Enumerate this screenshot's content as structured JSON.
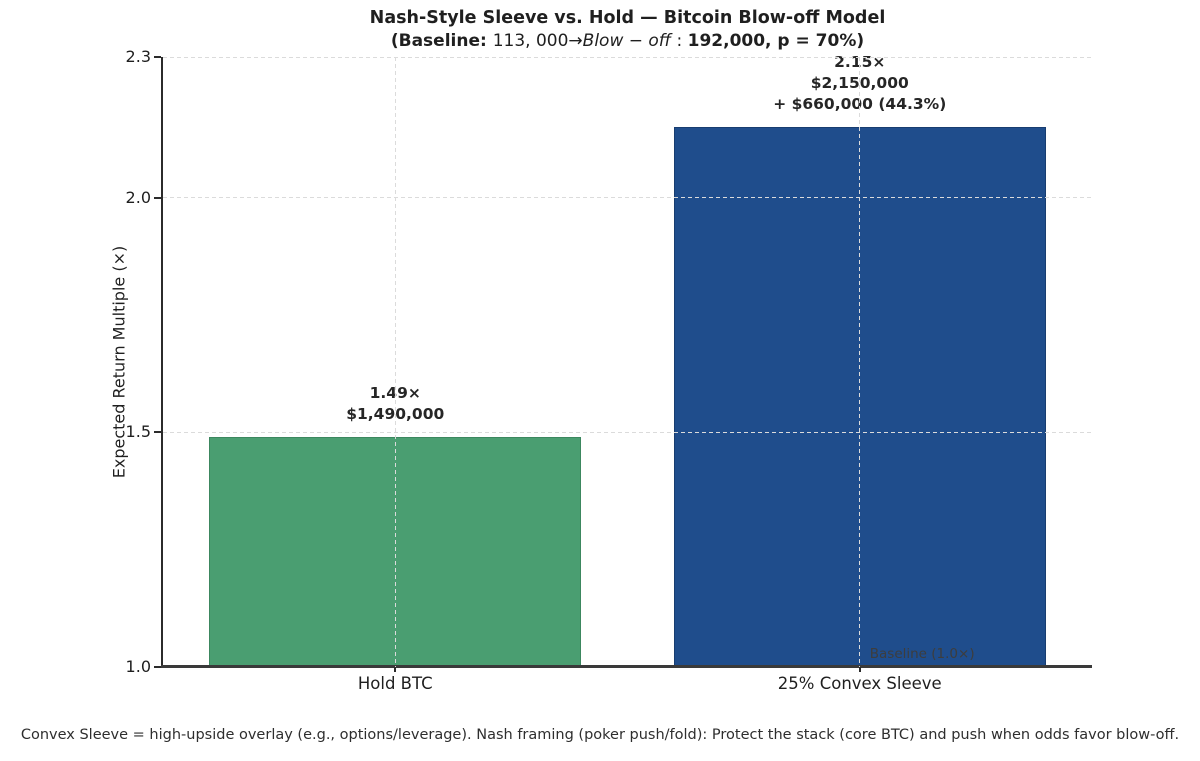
{
  "chart": {
    "title": "Nash-Style Sleeve vs. Hold — Bitcoin Blow-off Model",
    "subtitle_parts": [
      {
        "text": "(Baseline: ",
        "style": "bold"
      },
      {
        "text": "113, 000",
        "style": "regular"
      },
      {
        "text": "→",
        "style": "regular"
      },
      {
        "text": "Blow − off",
        "style": "italic"
      },
      {
        "text": " : ",
        "style": "regular"
      },
      {
        "text": "192,000, p = 70%)",
        "style": "bold"
      }
    ],
    "ylabel": "Expected Return Multiple (×)",
    "baseline_label": "Baseline (1.0×)",
    "footnote": "Convex Sleeve = high-upside overlay (e.g., options/leverage). Nash framing (poker push/fold): Protect the stack (core BTC) and push when odds favor blow-off."
  },
  "chart_data": {
    "type": "bar",
    "title": "Nash-Style Sleeve vs. Hold — Bitcoin Blow-off Model",
    "subtitle": "(Baseline: 113, 000→Blow − off : 192,000, p = 70%)",
    "categories": [
      "Hold BTC",
      "25% Convex Sleeve"
    ],
    "values": [
      1.49,
      2.15
    ],
    "bar_colors": [
      "#4a9e71",
      "#1f4d8c"
    ],
    "bar_edge_colors": [
      "#3c875f",
      "#183d70"
    ],
    "annotations": [
      {
        "lines": [
          "1.49×",
          "$1,490,000"
        ]
      },
      {
        "lines": [
          "2.15×",
          "$2,150,000",
          "+ $660,000 (44.3%)"
        ]
      }
    ],
    "xlabel": "",
    "ylabel": "Expected Return Multiple (×)",
    "ylim": [
      1.0,
      2.3
    ],
    "yticks": [
      1.0,
      1.5,
      2.0,
      2.3
    ],
    "bar_width_fraction": 0.8,
    "grid": true,
    "grid_style": "dashed",
    "legend": "none",
    "baseline": {
      "value": 1.0,
      "label": "Baseline (1.0×)"
    }
  }
}
